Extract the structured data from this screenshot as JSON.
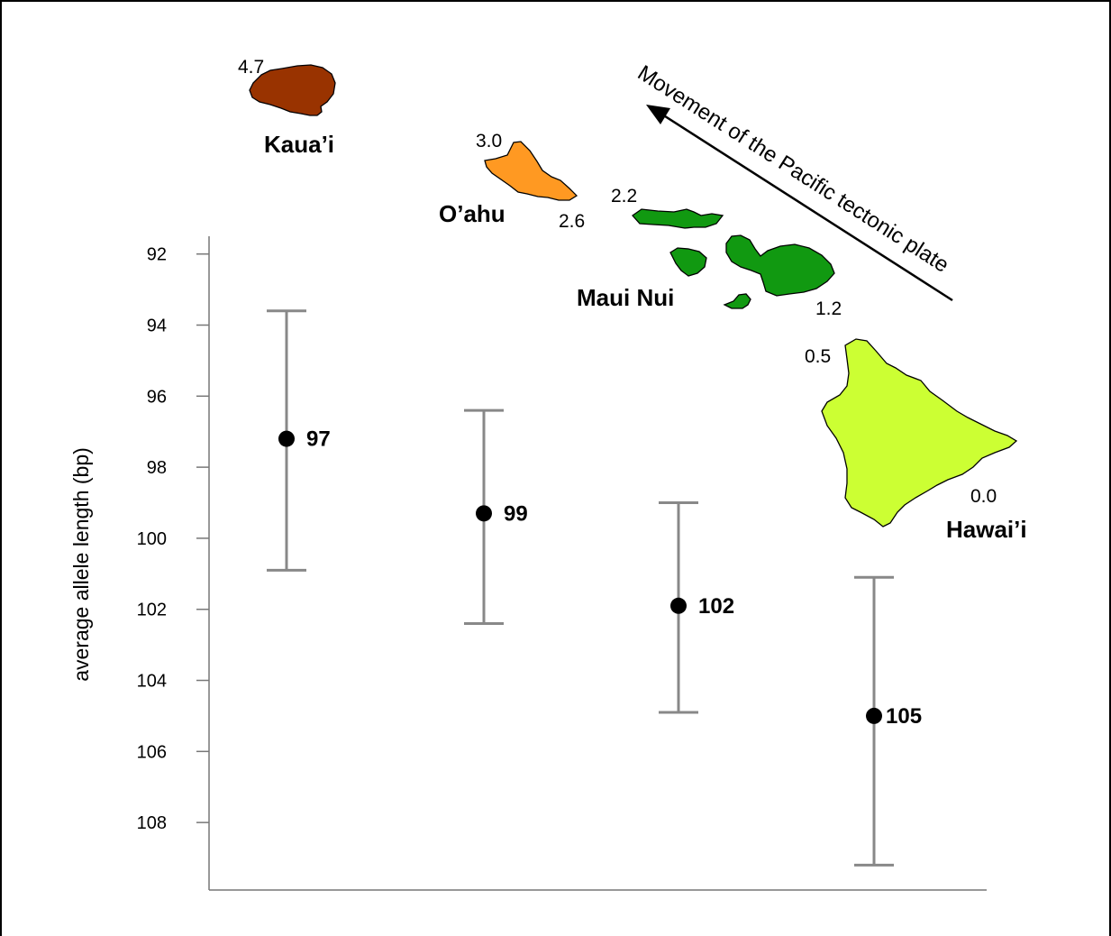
{
  "chart_data": {
    "type": "scatter",
    "ylabel": "average allele length (bp)",
    "y_inverted": true,
    "ylim": [
      91.5,
      109.9
    ],
    "y_ticks": [
      "92",
      "94",
      "96",
      "98",
      "100",
      "102",
      "104",
      "106",
      "108"
    ],
    "series": [
      {
        "points": [
          {
            "y": 97.2,
            "low": 93.6,
            "high": 100.9,
            "label": "97"
          },
          {
            "y": 99.3,
            "low": 96.4,
            "high": 102.4,
            "label": "99"
          },
          {
            "y": 101.9,
            "low": 99.0,
            "high": 104.9,
            "label": "102"
          },
          {
            "y": 105.0,
            "low": 101.1,
            "high": 109.2,
            "label": "105"
          }
        ]
      }
    ],
    "grid": false
  },
  "map": {
    "arrow_label": "Movement of the Pacific tectonic plate",
    "islands": [
      {
        "name": "Kaua’i",
        "color": "#993300",
        "ages": [
          "4.7"
        ]
      },
      {
        "name": "O’ahu",
        "color": "#ff9922",
        "ages": [
          "3.0",
          "2.6"
        ]
      },
      {
        "name": "Maui Nui",
        "color": "#119911",
        "ages": [
          "2.2",
          "1.2"
        ]
      },
      {
        "name": "Hawai’i",
        "color": "#ccff33",
        "ages": [
          "0.5",
          "0.0"
        ]
      }
    ]
  }
}
